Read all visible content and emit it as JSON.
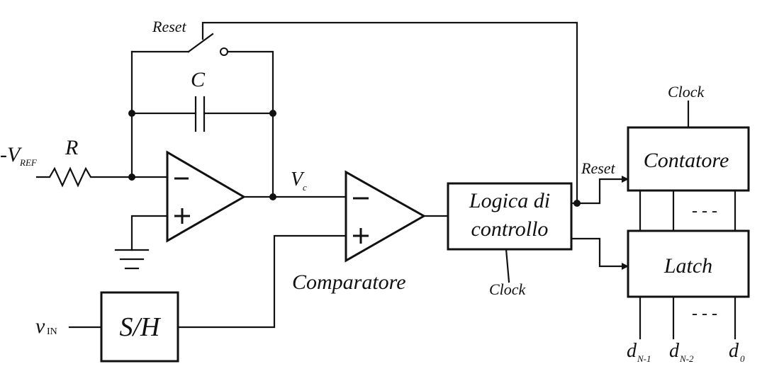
{
  "labels": {
    "vref_main": "-V",
    "vref_sub": "REF",
    "resistor": "R",
    "capacitor": "C",
    "reset_switch": "Reset",
    "vc_main": "V",
    "vc_sub": "c",
    "comparator": "Comparatore",
    "logic_line1": "Logica di",
    "logic_line2": "controllo",
    "logic_clock": "Clock",
    "counter": "Contatore",
    "counter_clock": "Clock",
    "counter_reset": "Reset",
    "latch": "Latch",
    "sh": "S/H",
    "vin_main": "v",
    "vin_sub": "IN",
    "counter_dashes": "- - -",
    "latch_dashes": "- - -",
    "out_msb_main": "d",
    "out_msb_sub": "N-1",
    "out_msb2_main": "d",
    "out_msb2_sub": "N-2",
    "out_lsb_main": "d",
    "out_lsb_sub": "0"
  }
}
